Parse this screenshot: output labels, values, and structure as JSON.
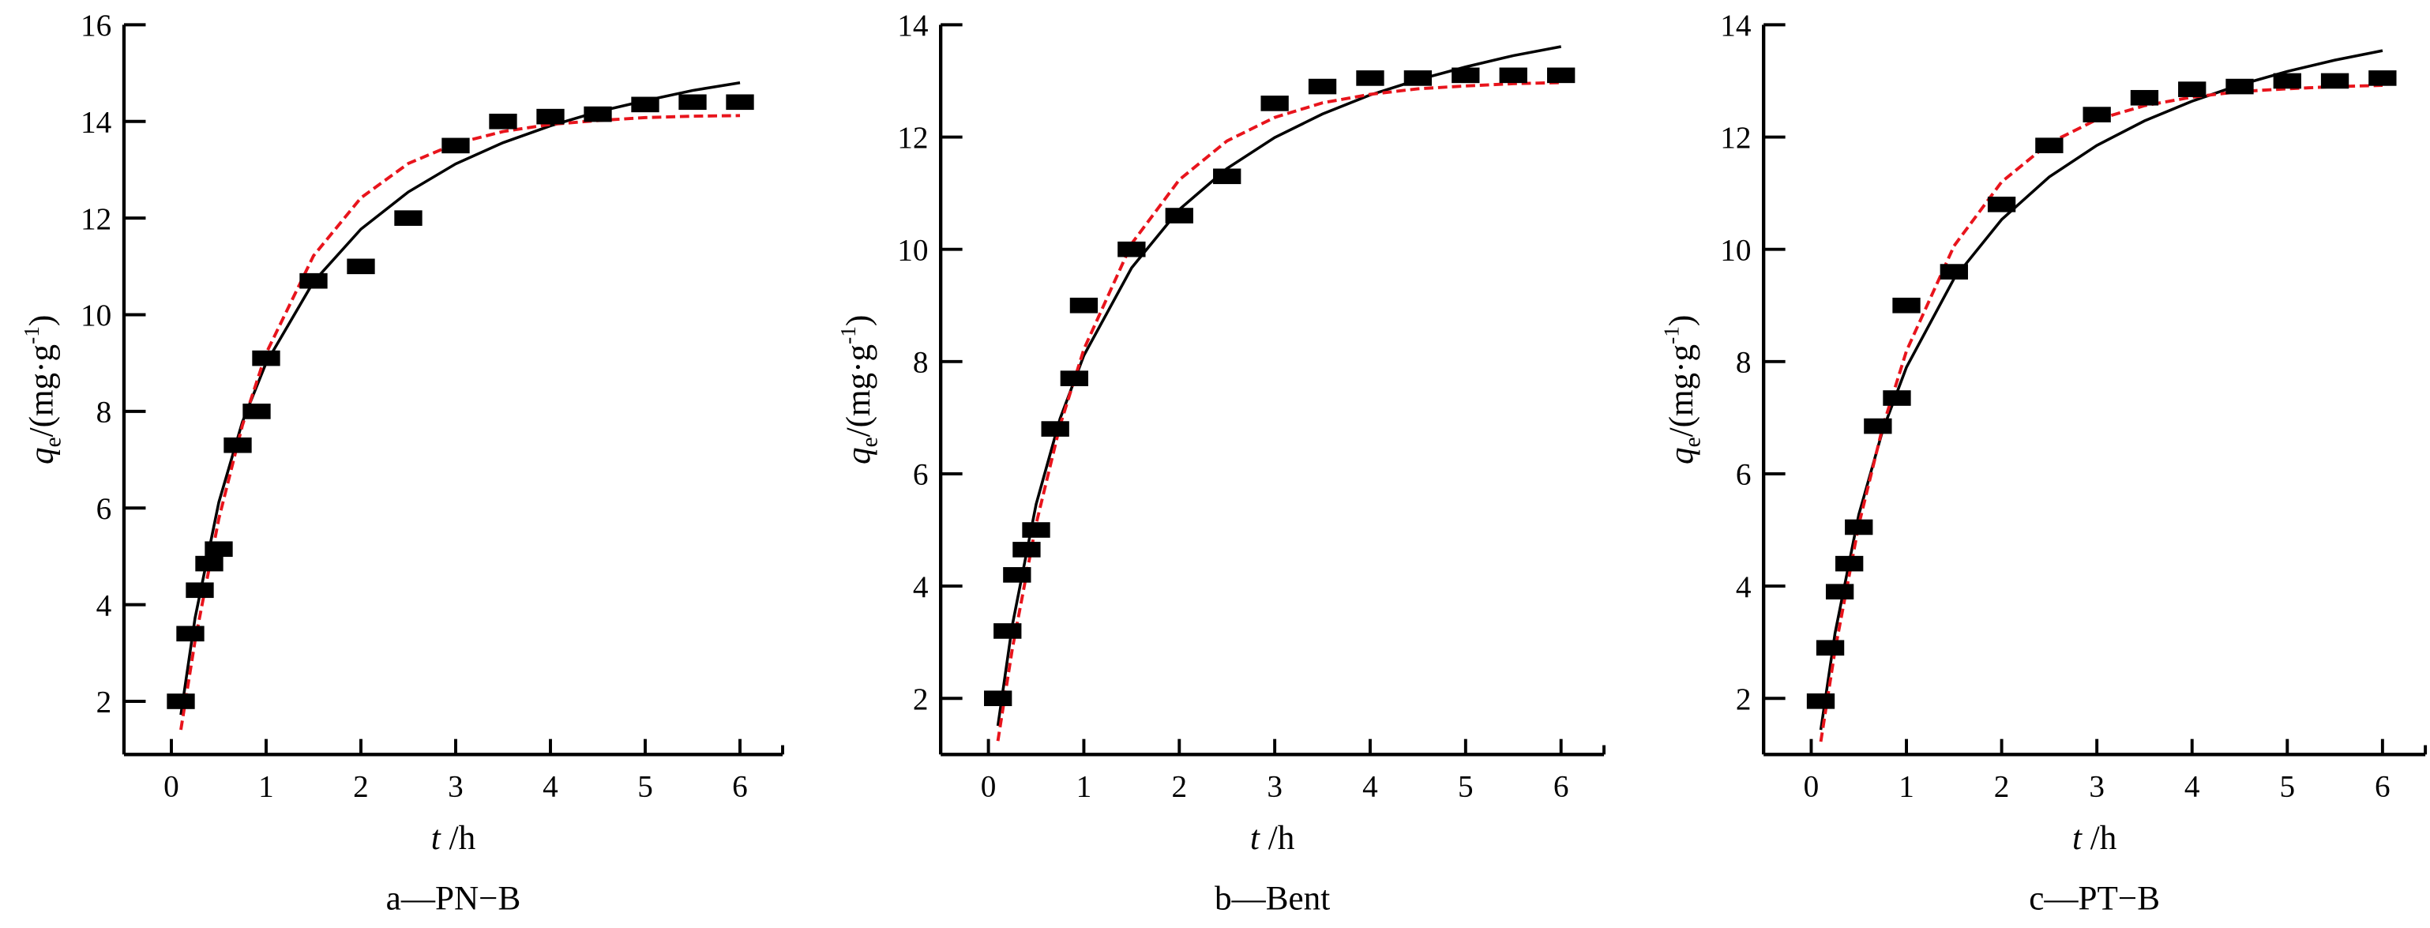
{
  "chart_data": [
    {
      "type": "scatter",
      "caption": "a—PN−B",
      "xlabel": {
        "var": "t",
        "unit": " /h"
      },
      "ylabel": {
        "var": "q",
        "sub": "e",
        "unit": "/(mg·g",
        "sup": "-1",
        "close": ")"
      },
      "xlim": [
        -0.5,
        6.45
      ],
      "ylim": [
        0.9,
        16
      ],
      "xticks": [
        0,
        1,
        2,
        3,
        4,
        5,
        6
      ],
      "yticks": [
        2,
        4,
        6,
        8,
        10,
        12,
        14,
        16
      ],
      "grid": false,
      "points": {
        "x": [
          0.1,
          0.2,
          0.3,
          0.4,
          0.5,
          0.7,
          0.9,
          1.0,
          1.5,
          2.0,
          2.5,
          3.0,
          3.5,
          4.0,
          4.5,
          5.0,
          5.5,
          6.0
        ],
        "y": [
          2.0,
          3.4,
          4.3,
          4.85,
          5.15,
          7.3,
          8.0,
          9.1,
          10.7,
          11.0,
          12.0,
          13.5,
          14.0,
          14.1,
          14.15,
          14.35,
          14.4,
          14.4
        ]
      },
      "curves": [
        {
          "style": "solid",
          "color": "#000000",
          "x": [
            0.1,
            0.25,
            0.5,
            0.75,
            1,
            1.5,
            2,
            2.5,
            3,
            3.5,
            4,
            4.5,
            5,
            5.5,
            6
          ],
          "y": [
            1.72,
            3.73,
            6.12,
            7.78,
            9.0,
            10.68,
            11.77,
            12.54,
            13.12,
            13.56,
            13.91,
            14.2,
            14.43,
            14.64,
            14.8
          ]
        },
        {
          "style": "dashed",
          "color": "#e8141c",
          "x": [
            0.1,
            0.25,
            0.5,
            0.75,
            1,
            1.5,
            2,
            2.5,
            3,
            3.5,
            4,
            4.5,
            5,
            5.5,
            6
          ],
          "y": [
            1.41,
            3.26,
            5.78,
            7.71,
            9.2,
            11.22,
            12.42,
            13.13,
            13.54,
            13.79,
            13.94,
            14.02,
            14.08,
            14.11,
            14.12
          ]
        }
      ]
    },
    {
      "type": "scatter",
      "caption": "b—Bent",
      "xlabel": {
        "var": "t",
        "unit": " /h"
      },
      "ylabel": {
        "var": "q",
        "sub": "e",
        "unit": "/(mg·g",
        "sup": "-1",
        "close": ")"
      },
      "xlim": [
        -0.5,
        6.45
      ],
      "ylim": [
        1,
        14
      ],
      "xticks": [
        0,
        1,
        2,
        3,
        4,
        5,
        6
      ],
      "yticks": [
        2,
        4,
        6,
        8,
        10,
        12,
        14
      ],
      "grid": false,
      "points": {
        "x": [
          0.1,
          0.2,
          0.3,
          0.4,
          0.5,
          0.7,
          0.9,
          1.0,
          1.5,
          2.0,
          2.5,
          3.0,
          3.5,
          4.0,
          4.5,
          5.0,
          5.5,
          6.0
        ],
        "y": [
          2.0,
          3.2,
          4.2,
          4.65,
          5.0,
          6.8,
          7.7,
          9.0,
          10.0,
          10.6,
          11.3,
          12.6,
          12.9,
          13.05,
          13.05,
          13.1,
          13.1,
          13.1
        ]
      },
      "curves": [
        {
          "style": "solid",
          "color": "#000000",
          "x": [
            0.1,
            0.25,
            0.5,
            0.75,
            1,
            1.5,
            2,
            2.5,
            3,
            3.5,
            4,
            4.5,
            5,
            5.5,
            6
          ],
          "y": [
            1.51,
            3.3,
            5.46,
            6.98,
            8.11,
            9.67,
            10.71,
            11.44,
            11.99,
            12.41,
            12.75,
            13.02,
            13.25,
            13.45,
            13.61
          ]
        },
        {
          "style": "dashed",
          "color": "#e8141c",
          "x": [
            0.1,
            0.25,
            0.5,
            0.75,
            1,
            1.5,
            2,
            2.5,
            3,
            3.5,
            4,
            4.5,
            5,
            5.5,
            6
          ],
          "y": [
            1.24,
            2.88,
            5.11,
            6.86,
            8.22,
            10.1,
            11.24,
            11.93,
            12.35,
            12.61,
            12.76,
            12.86,
            12.91,
            12.95,
            12.97
          ]
        }
      ]
    },
    {
      "type": "scatter",
      "caption": "c—PT−B",
      "xlabel": {
        "var": "t",
        "unit": " /h"
      },
      "ylabel": {
        "var": "q",
        "sub": "e",
        "unit": "/(mg·g",
        "sup": "-1",
        "close": ")"
      },
      "xlim": [
        -0.5,
        6.45
      ],
      "ylim": [
        1,
        14
      ],
      "xticks": [
        0,
        1,
        2,
        3,
        4,
        5,
        6
      ],
      "yticks": [
        2,
        4,
        6,
        8,
        10,
        12,
        14
      ],
      "grid": false,
      "points": {
        "x": [
          0.1,
          0.2,
          0.3,
          0.4,
          0.5,
          0.7,
          0.9,
          1.0,
          1.5,
          2.0,
          2.5,
          3.0,
          3.5,
          4.0,
          4.5,
          5.0,
          5.5,
          6.0
        ],
        "y": [
          1.95,
          2.9,
          3.9,
          4.4,
          5.05,
          6.85,
          7.35,
          9.0,
          9.6,
          10.8,
          11.85,
          12.4,
          12.7,
          12.85,
          12.9,
          13.0,
          13.0,
          13.05
        ]
      },
      "curves": [
        {
          "style": "solid",
          "color": "#000000",
          "x": [
            0.1,
            0.25,
            0.5,
            0.75,
            1,
            1.5,
            2,
            2.5,
            3,
            3.5,
            4,
            4.5,
            5,
            5.5,
            6
          ],
          "y": [
            1.44,
            3.16,
            5.27,
            6.77,
            7.9,
            9.48,
            10.53,
            11.29,
            11.85,
            12.29,
            12.64,
            12.93,
            13.17,
            13.37,
            13.54
          ]
        },
        {
          "style": "dashed",
          "color": "#e8141c",
          "x": [
            0.1,
            0.25,
            0.5,
            0.75,
            1,
            1.5,
            2,
            2.5,
            3,
            3.5,
            4,
            4.5,
            5,
            5.5,
            6
          ],
          "y": [
            1.23,
            2.86,
            5.09,
            6.83,
            8.19,
            10.06,
            11.2,
            11.89,
            12.31,
            12.56,
            12.71,
            12.81,
            12.86,
            12.9,
            12.92
          ]
        }
      ]
    }
  ]
}
